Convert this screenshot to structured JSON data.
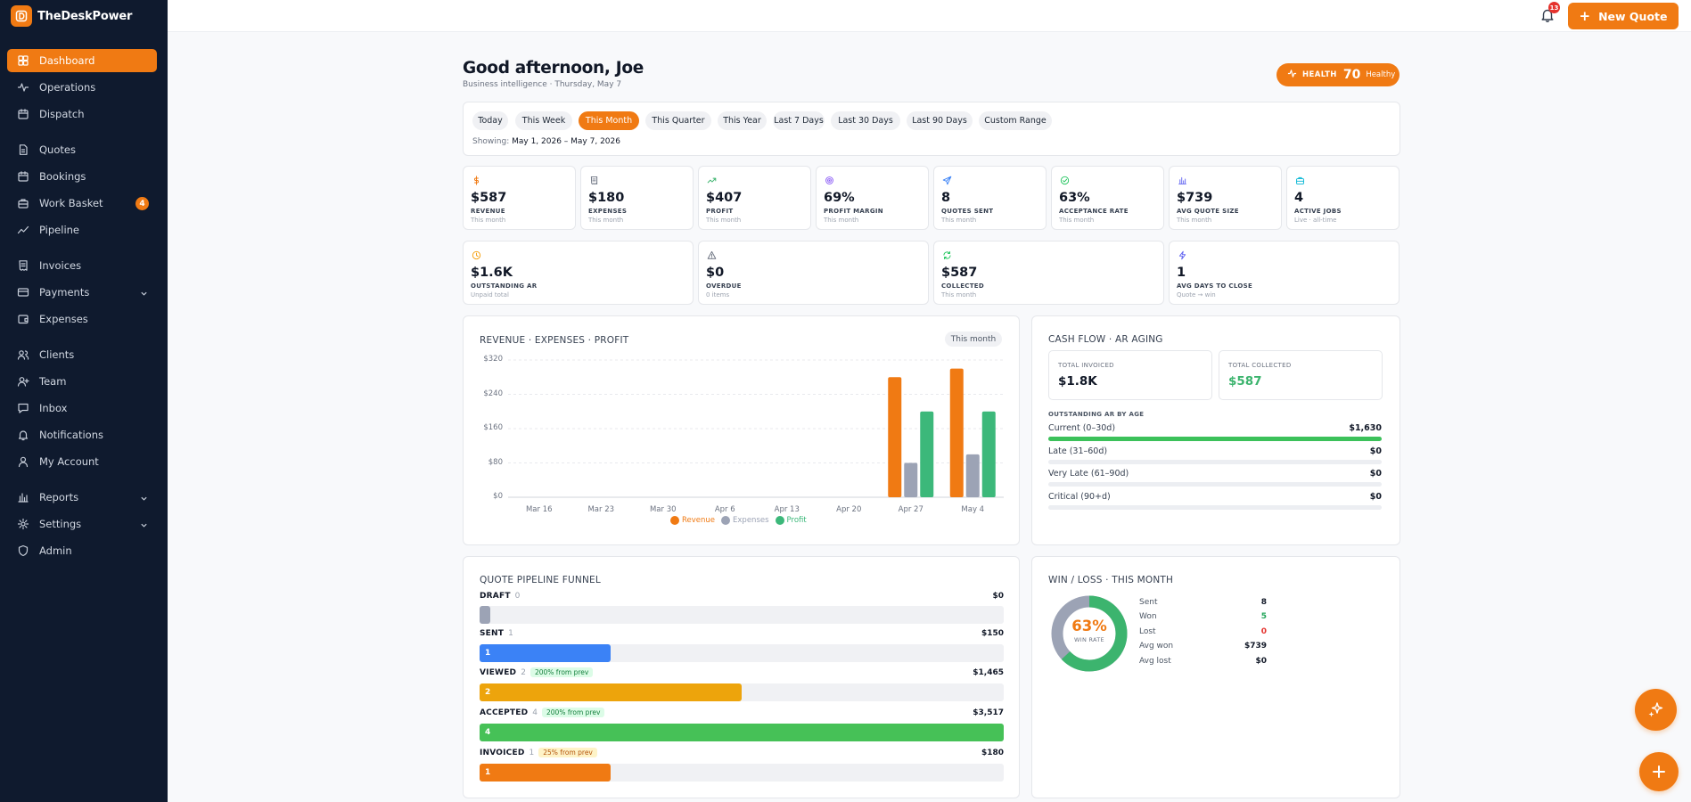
{
  "brand": {
    "name": "TheDeskPower"
  },
  "nav": [
    {
      "label": "Dashboard",
      "icon": "grid-icon",
      "active": true
    },
    {
      "label": "Operations",
      "icon": "activity-icon"
    },
    {
      "label": "Dispatch",
      "icon": "calendar-icon"
    },
    {
      "label": "Quotes",
      "icon": "file-icon"
    },
    {
      "label": "Bookings",
      "icon": "calendar-icon"
    },
    {
      "label": "Work Basket",
      "icon": "briefcase-icon",
      "badge": "4"
    },
    {
      "label": "Pipeline",
      "icon": "trend-icon"
    },
    {
      "label": "Invoices",
      "icon": "receipt-icon"
    },
    {
      "label": "Payments",
      "icon": "card-icon",
      "expandable": true
    },
    {
      "label": "Expenses",
      "icon": "wallet-icon"
    },
    {
      "label": "Clients",
      "icon": "users-icon"
    },
    {
      "label": "Team",
      "icon": "user-plus-icon"
    },
    {
      "label": "Inbox",
      "icon": "message-icon"
    },
    {
      "label": "Notifications",
      "icon": "bell-icon"
    },
    {
      "label": "My Account",
      "icon": "user-icon"
    },
    {
      "label": "Reports",
      "icon": "bar-chart-icon",
      "expandable": true
    },
    {
      "label": "Settings",
      "icon": "gear-icon",
      "expandable": true
    },
    {
      "label": "Admin",
      "icon": "shield-icon"
    }
  ],
  "topbar": {
    "notif_count": "13",
    "new_quote": "New Quote"
  },
  "header": {
    "greeting": "Good afternoon, Joe",
    "subtitle": "Business intelligence · Thursday, May 7",
    "health_label": "HEALTH",
    "health_value": "70",
    "health_status": "Healthy"
  },
  "range": {
    "chips": [
      "Today",
      "This Week",
      "This Month",
      "This Quarter",
      "This Year",
      "Last 7 Days",
      "Last 30 Days",
      "Last 90 Days",
      "Custom Range"
    ],
    "active": "This Month",
    "showing_label": "Showing:",
    "showing_value": "May 1, 2026 – May 7, 2026"
  },
  "kpis_row1": [
    {
      "value": "$587",
      "label": "REVENUE",
      "sub": "This month",
      "icon": "dollar-icon",
      "color": "#f07a13"
    },
    {
      "value": "$180",
      "label": "EXPENSES",
      "sub": "This month",
      "icon": "receipt-icon",
      "color": "#6b7280"
    },
    {
      "value": "$407",
      "label": "PROFIT",
      "sub": "This month",
      "icon": "trend-up-icon",
      "color": "#3cb46e"
    },
    {
      "value": "69%",
      "label": "PROFIT MARGIN",
      "sub": "This month",
      "icon": "target-icon",
      "color": "#8b5cf6"
    },
    {
      "value": "8",
      "label": "QUOTES SENT",
      "sub": "This month",
      "icon": "send-icon",
      "color": "#3b82f6"
    },
    {
      "value": "63%",
      "label": "ACCEPTANCE RATE",
      "sub": "This month",
      "icon": "check-circle-icon",
      "color": "#22c55e"
    },
    {
      "value": "$739",
      "label": "AVG QUOTE SIZE",
      "sub": "This month",
      "icon": "bar-chart-icon",
      "color": "#6366f1"
    },
    {
      "value": "4",
      "label": "ACTIVE JOBS",
      "sub": "Live · all-time",
      "icon": "briefcase-icon",
      "color": "#06b6d4"
    }
  ],
  "kpis_row2": [
    {
      "value": "$1.6K",
      "label": "OUTSTANDING AR",
      "sub": "Unpaid total",
      "icon": "clock-icon",
      "color": "#f59e0b"
    },
    {
      "value": "$0",
      "label": "OVERDUE",
      "sub": "0 items",
      "icon": "alert-icon",
      "color": "#6b7280"
    },
    {
      "value": "$587",
      "label": "COLLECTED",
      "sub": "This month",
      "icon": "refresh-icon",
      "color": "#22c55e"
    },
    {
      "value": "1",
      "label": "AVG DAYS TO CLOSE",
      "sub": "Quote → win",
      "icon": "zap-icon",
      "color": "#6366f1"
    }
  ],
  "chart_data": {
    "type": "bar",
    "title": "REVENUE · EXPENSES · PROFIT",
    "period_pill": "This month",
    "categories": [
      "Mar 16",
      "Mar 23",
      "Mar 30",
      "Apr 6",
      "Apr 13",
      "Apr 20",
      "Apr 27",
      "May 4"
    ],
    "yticks": [
      "$0",
      "$80",
      "$160",
      "$240",
      "$320"
    ],
    "ylim": [
      0,
      320
    ],
    "series": [
      {
        "name": "Revenue",
        "color": "#f07a13",
        "values": [
          0,
          0,
          0,
          0,
          0,
          0,
          280,
          300
        ]
      },
      {
        "name": "Expenses",
        "color": "#9ca3b5",
        "values": [
          0,
          0,
          0,
          0,
          0,
          0,
          80,
          100
        ]
      },
      {
        "name": "Profit",
        "color": "#3cb87a",
        "values": [
          0,
          0,
          0,
          0,
          0,
          0,
          200,
          200
        ]
      }
    ],
    "legend": "bottom"
  },
  "cashflow": {
    "title": "CASH FLOW · AR AGING",
    "invoiced_label": "TOTAL INVOICED",
    "invoiced_value": "$1.8K",
    "collected_label": "TOTAL COLLECTED",
    "collected_value": "$587",
    "aging_title": "OUTSTANDING AR BY AGE",
    "aging": [
      {
        "label": "Current (0–30d)",
        "value": "$1,630",
        "fraction": 1.0
      },
      {
        "label": "Late (31–60d)",
        "value": "$0",
        "fraction": 0
      },
      {
        "label": "Very Late (61–90d)",
        "value": "$0",
        "fraction": 0
      },
      {
        "label": "Critical (90+d)",
        "value": "$0",
        "fraction": 0
      }
    ]
  },
  "funnel": {
    "title": "QUOTE PIPELINE FUNNEL",
    "stages": [
      {
        "stage": "DRAFT",
        "count": "0",
        "amount": "$0",
        "tag": "",
        "fill_label": "",
        "fraction": 0.02,
        "color": "#9ca3b5"
      },
      {
        "stage": "SENT",
        "count": "1",
        "amount": "$150",
        "tag": "",
        "fill_label": "1",
        "fraction": 0.25,
        "color": "#3b82f6"
      },
      {
        "stage": "VIEWED",
        "count": "2",
        "amount": "$1,465",
        "tag": "200% from prev",
        "tag_bg": "#dcfce7",
        "tag_color": "#15803d",
        "fill_label": "2",
        "fraction": 0.5,
        "color": "#eda40c"
      },
      {
        "stage": "ACCEPTED",
        "count": "4",
        "amount": "$3,517",
        "tag": "200% from prev",
        "tag_bg": "#dcfce7",
        "tag_color": "#15803d",
        "fill_label": "4",
        "fraction": 1.0,
        "color": "#46c157"
      },
      {
        "stage": "INVOICED",
        "count": "1",
        "amount": "$180",
        "tag": "25% from prev",
        "tag_bg": "#fef3c7",
        "tag_color": "#b45309",
        "fill_label": "1",
        "fraction": 0.25,
        "color": "#f07a13"
      }
    ]
  },
  "winloss": {
    "title": "WIN / LOSS · THIS MONTH",
    "rate": "63%",
    "rate_label": "WIN RATE",
    "won_fraction": 0.63,
    "rows": [
      {
        "label": "Sent",
        "value": "8",
        "color": "#111827"
      },
      {
        "label": "Won",
        "value": "5",
        "color": "#22a55a"
      },
      {
        "label": "Lost",
        "value": "0",
        "color": "#e5322d"
      },
      {
        "label": "Avg won",
        "value": "$739",
        "color": "#111827"
      },
      {
        "label": "Avg lost",
        "value": "$0",
        "color": "#111827"
      }
    ]
  }
}
